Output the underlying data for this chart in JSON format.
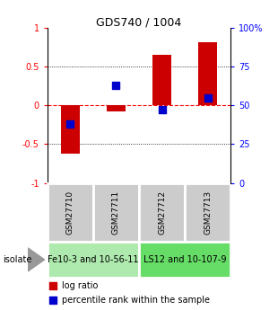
{
  "title": "GDS740 / 1004",
  "samples": [
    "GSM27710",
    "GSM27711",
    "GSM27712",
    "GSM27713"
  ],
  "log_ratios": [
    -0.62,
    -0.08,
    0.65,
    0.82
  ],
  "percentile_ranks": [
    0.38,
    0.63,
    0.47,
    0.55
  ],
  "groups": [
    {
      "label": "Fe10-3 and 10-56-11",
      "samples": [
        0,
        1
      ],
      "color": "#aeeaae"
    },
    {
      "label": "LS12 and 10-107-9",
      "samples": [
        2,
        3
      ],
      "color": "#66dd66"
    }
  ],
  "ylim": [
    -1,
    1
  ],
  "yticks_left": [
    -1,
    -0.5,
    0,
    0.5,
    1
  ],
  "yticks_right_vals": [
    -1,
    -0.5,
    0,
    0.5,
    1
  ],
  "yticks_right_labels": [
    "0",
    "25",
    "50",
    "75",
    "100%"
  ],
  "hlines_dotted": [
    -0.5,
    0.5
  ],
  "bar_color": "#cc0000",
  "dot_color": "#0000cc",
  "bar_width": 0.4,
  "dot_size": 35,
  "sample_box_color": "#cccccc",
  "sample_box_edge": "#ffffff",
  "isolate_label": "isolate",
  "arrow_color": "#888888",
  "legend_log_ratio": "log ratio",
  "legend_percentile": "percentile rank within the sample",
  "title_fontsize": 9,
  "tick_fontsize": 7,
  "sample_fontsize": 6.5,
  "group_fontsize": 7,
  "legend_fontsize": 7
}
